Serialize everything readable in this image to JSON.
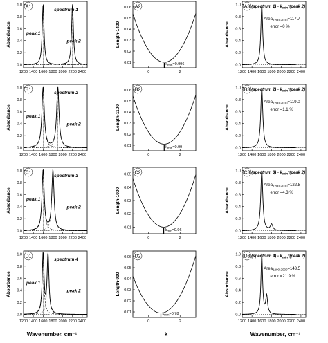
{
  "figure": {
    "xlabel_left": "Wavenumber, cm⁻¹",
    "xlabel_middle": "k",
    "xlabel_right": "Wavenumber, cm⁻¹"
  },
  "chart_data": [
    {
      "id": "A1",
      "type": "line",
      "ylabel": "Absorbance",
      "xlim": [
        1200,
        2500
      ],
      "ylim": [
        -0.05,
        1.05
      ],
      "xticks": [
        1200,
        1400,
        1600,
        1800,
        2000,
        2200,
        2400
      ],
      "yticks": [
        0.0,
        0.2,
        0.4,
        0.6,
        0.8,
        1.0
      ],
      "tick_labels_x": true,
      "peaks": [
        {
          "center": 1600,
          "height": 1.0,
          "width": 45
        },
        {
          "center": 2200,
          "height": 1.0,
          "width": 45
        }
      ],
      "labels": {
        "spectrum": "spectrum 1",
        "peak1": "peak 1",
        "peak2": "peak 2"
      }
    },
    {
      "id": "A2",
      "type": "line",
      "ylabel": "Length-1400",
      "xlim": [
        -1,
        3
      ],
      "ylim": [
        0.005,
        0.065
      ],
      "xticks": [
        0,
        2
      ],
      "yticks": [
        0.01,
        0.02,
        0.03,
        0.04,
        0.05,
        0.06
      ],
      "parabola": {
        "kmin": 0.996,
        "ymin": 0.01,
        "a": 0.011
      },
      "annotation": "k",
      "annotation_sub": "min",
      "annotation_value": "=0.996"
    },
    {
      "id": "A3",
      "type": "line",
      "ylabel": "Absorbance",
      "xlim": [
        1200,
        2500
      ],
      "ylim": [
        -0.05,
        1.05
      ],
      "xticks": [
        1200,
        1400,
        1600,
        1800,
        2000,
        2200,
        2400
      ],
      "yticks": [
        0.0,
        0.2,
        0.4,
        0.6,
        0.8,
        1.0
      ],
      "tick_labels_x": true,
      "peaks": [
        {
          "center": 1600,
          "height": 1.0,
          "width": 45
        }
      ],
      "title": "(spectrum 1) - k",
      "title_sub": "min",
      "title_tail": "*(peak 2)",
      "area_label": "Area",
      "area_sub": "1200-2000",
      "area_value": "=117.7",
      "error": "error =0 %"
    },
    {
      "id": "B1",
      "type": "line",
      "ylabel": "Absorbance",
      "xlim": [
        1200,
        2500
      ],
      "ylim": [
        -0.05,
        1.05
      ],
      "xticks": [
        1200,
        1400,
        1600,
        1800,
        2000,
        2200,
        2400
      ],
      "yticks": [
        0.0,
        0.2,
        0.4,
        0.6,
        0.8,
        1.0
      ],
      "tick_labels_x": true,
      "peaks": [
        {
          "center": 1600,
          "height": 1.0,
          "width": 60
        },
        {
          "center": 1900,
          "height": 1.0,
          "width": 60
        }
      ],
      "labels": {
        "spectrum": "spectrum 2",
        "peak1": "peak 1",
        "peak2": "peak 2"
      }
    },
    {
      "id": "B2",
      "type": "line",
      "ylabel": "Length-1100",
      "xlim": [
        -1,
        3
      ],
      "ylim": [
        0.005,
        0.065
      ],
      "xticks": [
        0,
        2
      ],
      "yticks": [
        0.01,
        0.02,
        0.03,
        0.04,
        0.05,
        0.06
      ],
      "parabola": {
        "kmin": 0.99,
        "ymin": 0.011,
        "a": 0.011
      },
      "annotation": "k",
      "annotation_sub": "min",
      "annotation_value": "=0.99"
    },
    {
      "id": "B3",
      "type": "line",
      "ylabel": "Absorbance",
      "xlim": [
        1200,
        2500
      ],
      "ylim": [
        -0.05,
        1.05
      ],
      "xticks": [
        1200,
        1400,
        1600,
        1800,
        2000,
        2200,
        2400
      ],
      "yticks": [
        0.0,
        0.2,
        0.4,
        0.6,
        0.8,
        1.0
      ],
      "tick_labels_x": true,
      "peaks": [
        {
          "center": 1600,
          "height": 1.0,
          "width": 50
        }
      ],
      "title": "(spectrum 2) - k",
      "title_sub": "min",
      "title_tail": "*(peak 2)",
      "area_label": "Area",
      "area_sub": "1200-2000",
      "area_value": "=119.0",
      "error": "error =1.1 %"
    },
    {
      "id": "C1",
      "type": "line",
      "ylabel": "Absorbance",
      "xlim": [
        1200,
        2500
      ],
      "ylim": [
        -0.05,
        1.05
      ],
      "xticks": [
        1200,
        1400,
        1600,
        1800,
        2000,
        2200,
        2400
      ],
      "yticks": [
        0.0,
        0.2,
        0.4,
        0.6,
        0.8,
        1.0
      ],
      "tick_labels_x": true,
      "peaks": [
        {
          "center": 1600,
          "height": 1.0,
          "width": 55
        },
        {
          "center": 1800,
          "height": 1.0,
          "width": 55
        }
      ],
      "labels": {
        "spectrum": "spectrum 3",
        "peak1": "peak 1",
        "peak2": "peak 2"
      }
    },
    {
      "id": "C2",
      "type": "line",
      "ylabel": "Length-1000",
      "xlim": [
        -1,
        3
      ],
      "ylim": [
        0.005,
        0.055
      ],
      "xticks": [
        0,
        2
      ],
      "yticks": [
        0.01,
        0.02,
        0.03,
        0.04,
        0.05
      ],
      "parabola": {
        "kmin": 0.96,
        "ymin": 0.01,
        "a": 0.0095
      },
      "annotation": "k",
      "annotation_sub": "min",
      "annotation_value": "=0.96"
    },
    {
      "id": "C3",
      "type": "line",
      "ylabel": "Absorbance",
      "xlim": [
        1200,
        2500
      ],
      "ylim": [
        -0.05,
        1.05
      ],
      "xticks": [
        1200,
        1400,
        1600,
        1800,
        2000,
        2200,
        2400
      ],
      "yticks": [
        0.0,
        0.2,
        0.4,
        0.6,
        0.8,
        1.0
      ],
      "tick_labels_x": true,
      "peaks": [
        {
          "center": 1600,
          "height": 1.0,
          "width": 50
        },
        {
          "center": 1800,
          "height": 0.1,
          "width": 60
        }
      ],
      "title": "(spectrum 3) - k",
      "title_sub": "min",
      "title_tail": "*(peak 2)",
      "area_label": "Area",
      "area_sub": "1200-2000",
      "area_value": "=122.8",
      "error": "error =4.3 %"
    },
    {
      "id": "D1",
      "type": "line",
      "ylabel": "Absorbance",
      "xlim": [
        1200,
        2500
      ],
      "ylim": [
        -0.05,
        1.05
      ],
      "xticks": [
        1200,
        1400,
        1600,
        1800,
        2000,
        2200,
        2400
      ],
      "yticks": [
        0.0,
        0.2,
        0.4,
        0.6,
        0.8,
        1.0
      ],
      "tick_labels_x": true,
      "peaks": [
        {
          "center": 1600,
          "height": 1.0,
          "width": 45
        },
        {
          "center": 1700,
          "height": 1.0,
          "width": 45
        }
      ],
      "labels": {
        "spectrum": "spectrum 4",
        "peak1": "peak 1",
        "peak2": "peak 2"
      }
    },
    {
      "id": "D2",
      "type": "line",
      "ylabel": "Length-900",
      "xlim": [
        -1,
        3
      ],
      "ylim": [
        0.005,
        0.065
      ],
      "xticks": [
        0,
        2
      ],
      "yticks": [
        0.01,
        0.02,
        0.03,
        0.04,
        0.05,
        0.06
      ],
      "parabola": {
        "kmin": 0.78,
        "ymin": 0.009,
        "a": 0.0105
      },
      "annotation": "k",
      "annotation_sub": "min",
      "annotation_value": "=0.78"
    },
    {
      "id": "D3",
      "type": "line",
      "ylabel": "Absorbance",
      "xlim": [
        1200,
        2500
      ],
      "ylim": [
        -0.05,
        1.05
      ],
      "xticks": [
        1200,
        1400,
        1600,
        1800,
        2000,
        2200,
        2400
      ],
      "yticks": [
        0.0,
        0.2,
        0.4,
        0.6,
        0.8,
        1.0
      ],
      "tick_labels_x": true,
      "peaks": [
        {
          "center": 1600,
          "height": 1.0,
          "width": 40
        },
        {
          "center": 1700,
          "height": 0.3,
          "width": 45
        }
      ],
      "title": "(spectrum 4) - k",
      "title_sub": "min",
      "title_tail": "*(peak 2)",
      "area_label": "Area",
      "area_sub": "1200-2000",
      "area_value": "=143.5",
      "error": "error =21.9 %"
    }
  ]
}
